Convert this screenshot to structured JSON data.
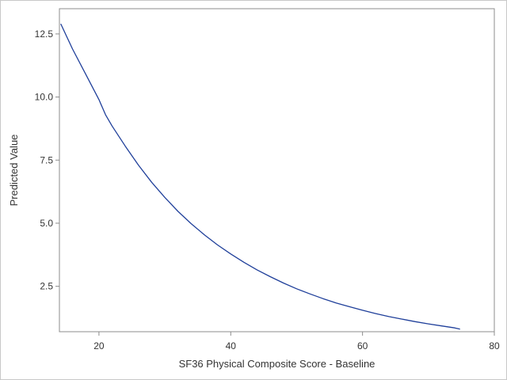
{
  "chart_data": {
    "type": "line",
    "title": "",
    "xlabel": "SF36 Physical Composite Score - Baseline",
    "ylabel": "Predicted Value",
    "xlim": [
      14,
      80
    ],
    "ylim": [
      0.7,
      13.5
    ],
    "x_ticks": [
      20,
      40,
      60,
      80
    ],
    "y_ticks": [
      2.5,
      5.0,
      7.5,
      10.0,
      12.5
    ],
    "x_tick_labels": [
      "20",
      "40",
      "60",
      "80"
    ],
    "y_tick_labels": [
      "2.5",
      "5.0",
      "7.5",
      "10.0",
      "12.5"
    ],
    "grid": false,
    "series": [
      {
        "color": "#1f3f9a",
        "x": [
          14.2,
          16,
          18,
          20,
          21,
          22,
          24,
          26,
          28,
          30,
          32,
          34,
          36,
          38,
          40,
          42,
          44,
          46,
          48,
          50,
          52,
          54,
          56,
          58,
          60,
          62,
          64,
          66,
          68,
          70,
          72,
          74,
          74.8
        ],
        "y": [
          12.9,
          11.9,
          10.9,
          9.9,
          9.3,
          8.85,
          8.05,
          7.3,
          6.62,
          6.02,
          5.47,
          4.98,
          4.54,
          4.14,
          3.78,
          3.45,
          3.15,
          2.88,
          2.63,
          2.4,
          2.2,
          2.01,
          1.84,
          1.69,
          1.55,
          1.42,
          1.3,
          1.2,
          1.1,
          1.01,
          0.93,
          0.85,
          0.8
        ]
      }
    ]
  }
}
